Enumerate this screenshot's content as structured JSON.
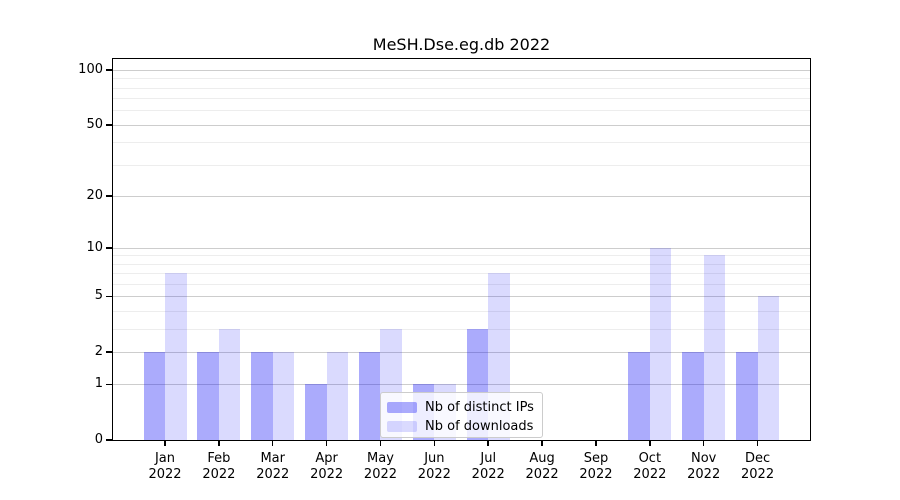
{
  "title": "MeSH.Dse.eg.db 2022",
  "chart_data": {
    "type": "bar",
    "title": "MeSH.Dse.eg.db 2022",
    "categories": [
      "Jan 2022",
      "Feb 2022",
      "Mar 2022",
      "Apr 2022",
      "May 2022",
      "Jun 2022",
      "Jul 2022",
      "Aug 2022",
      "Sep 2022",
      "Oct 2022",
      "Nov 2022",
      "Dec 2022"
    ],
    "series": [
      {
        "name": "Nb of distinct IPs",
        "color": "rgba(10,10,245,0.34)",
        "values": [
          2,
          2,
          2,
          1,
          2,
          1,
          3,
          0,
          0,
          2,
          2,
          2
        ]
      },
      {
        "name": "Nb of downloads",
        "color": "rgba(10,10,245,0.15)",
        "values": [
          7,
          3,
          2,
          2,
          3,
          1,
          7,
          0,
          0,
          10,
          9,
          5
        ]
      }
    ],
    "xlabel": "",
    "ylabel": "",
    "y_scale": "log1p",
    "y_ticks": [
      0,
      1,
      2,
      5,
      10,
      20,
      50,
      100
    ],
    "y_minor_gridlines": [
      3,
      4,
      6,
      7,
      8,
      9,
      30,
      40,
      60,
      70,
      80,
      90
    ],
    "ylim": [
      0,
      115
    ],
    "grid": true,
    "legend_position": "lower center"
  },
  "colors": {
    "bar_distinct_ips": "rgba(10,10,245,0.34)",
    "bar_downloads": "rgba(10,10,245,0.15)",
    "grid_major": "#cdcdcd",
    "grid_minor": "#ededed",
    "axis": "#000000",
    "legend_border": "#cccccc"
  }
}
